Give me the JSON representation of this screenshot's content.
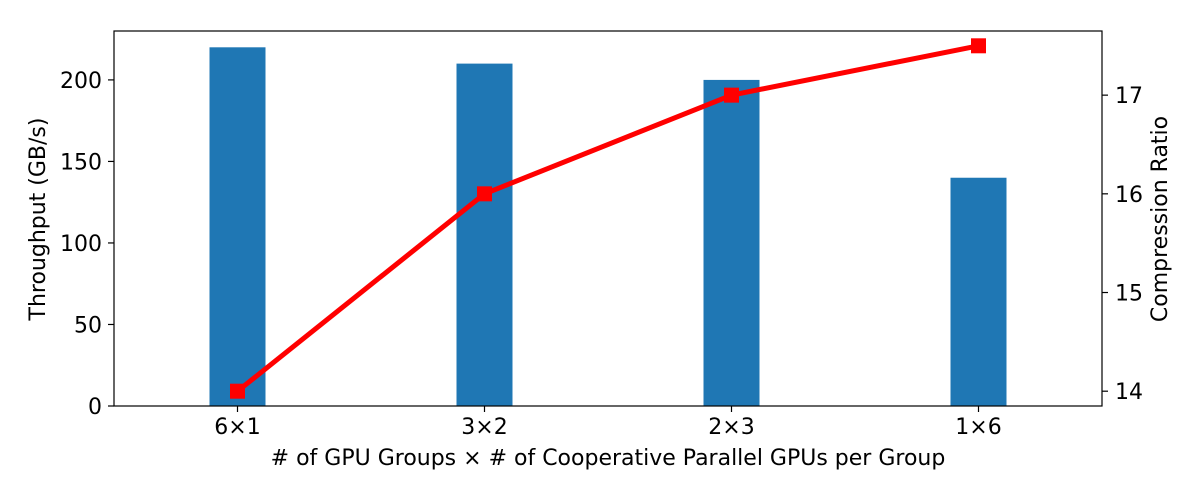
{
  "chart_data": {
    "type": "bar",
    "categories": [
      "6×1",
      "3×2",
      "2×3",
      "1×6"
    ],
    "xlabel": "# of GPU Groups × # of Cooperative Parallel GPUs per Group",
    "ylabel": "Throughput (GB/s)",
    "y2label": "Compression Ratio",
    "ylim": [
      0,
      230
    ],
    "y2lim": [
      13.85,
      17.65
    ],
    "yticks": [
      "0",
      "50",
      "100",
      "150",
      "200"
    ],
    "y2ticks": [
      "14",
      "15",
      "16",
      "17"
    ],
    "grid": false,
    "series": [
      {
        "type": "bar",
        "axis": "left",
        "color": "#1f77b4",
        "values": [
          220,
          210,
          200,
          140
        ]
      },
      {
        "type": "line",
        "axis": "right",
        "color": "#ff0000",
        "marker": "square",
        "values": [
          14.0,
          16.0,
          17.0,
          17.5
        ]
      }
    ]
  }
}
